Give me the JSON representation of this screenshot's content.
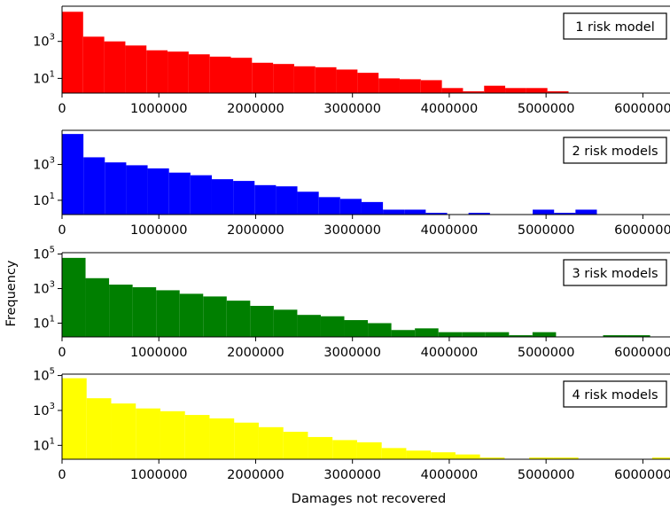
{
  "chart_data": {
    "type": "bar",
    "layout": "4 stacked panels sharing x axis range",
    "xlabel": "Damages not recovered",
    "ylabel": "Frequency",
    "yscale": "log",
    "xlim": [
      0,
      6500000
    ],
    "x_ticks": [
      0,
      1000000,
      2000000,
      3000000,
      4000000,
      5000000,
      6000000
    ],
    "x_tick_labels": [
      "0",
      "1000000",
      "2000000",
      "3000000",
      "4000000",
      "5000000",
      "6000000"
    ],
    "legend_placement": "top-right",
    "grid": false,
    "panels": [
      {
        "legend": "1 risk model",
        "color": "#ff0000",
        "ylim": [
          1.6,
          80000
        ],
        "y_ticks": [
          10,
          1000
        ],
        "y_tick_labels": [
          {
            "base": "10",
            "exp": "1"
          },
          {
            "base": "10",
            "exp": "3"
          }
        ],
        "bars": [
          {
            "x0": 0,
            "x1": 218000,
            "y": 40000
          },
          {
            "x0": 218000,
            "x1": 436000,
            "y": 1800
          },
          {
            "x0": 436000,
            "x1": 654000,
            "y": 1000
          },
          {
            "x0": 654000,
            "x1": 872000,
            "y": 600
          },
          {
            "x0": 872000,
            "x1": 1090000,
            "y": 330
          },
          {
            "x0": 1090000,
            "x1": 1308000,
            "y": 280
          },
          {
            "x0": 1308000,
            "x1": 1526000,
            "y": 200
          },
          {
            "x0": 1526000,
            "x1": 1744000,
            "y": 150
          },
          {
            "x0": 1744000,
            "x1": 1962000,
            "y": 130
          },
          {
            "x0": 1962000,
            "x1": 2180000,
            "y": 70
          },
          {
            "x0": 2180000,
            "x1": 2398000,
            "y": 60
          },
          {
            "x0": 2398000,
            "x1": 2616000,
            "y": 45
          },
          {
            "x0": 2616000,
            "x1": 2834000,
            "y": 40
          },
          {
            "x0": 2834000,
            "x1": 3052000,
            "y": 30
          },
          {
            "x0": 3052000,
            "x1": 3270000,
            "y": 20
          },
          {
            "x0": 3270000,
            "x1": 3488000,
            "y": 10
          },
          {
            "x0": 3488000,
            "x1": 3706000,
            "y": 9
          },
          {
            "x0": 3706000,
            "x1": 3924000,
            "y": 8
          },
          {
            "x0": 3924000,
            "x1": 4142000,
            "y": 3
          },
          {
            "x0": 4142000,
            "x1": 4360000,
            "y": 2
          },
          {
            "x0": 4360000,
            "x1": 4578000,
            "y": 4
          },
          {
            "x0": 4578000,
            "x1": 4796000,
            "y": 3
          },
          {
            "x0": 4796000,
            "x1": 5014000,
            "y": 3
          },
          {
            "x0": 5014000,
            "x1": 5232000,
            "y": 2
          }
        ]
      },
      {
        "legend": "2 risk models",
        "color": "#0000ff",
        "ylim": [
          1.6,
          80000
        ],
        "y_ticks": [
          10,
          1000
        ],
        "y_tick_labels": [
          {
            "base": "10",
            "exp": "1"
          },
          {
            "base": "10",
            "exp": "3"
          }
        ],
        "bars": [
          {
            "x0": 0,
            "x1": 221000,
            "y": 50000
          },
          {
            "x0": 221000,
            "x1": 442000,
            "y": 2500
          },
          {
            "x0": 442000,
            "x1": 663000,
            "y": 1300
          },
          {
            "x0": 663000,
            "x1": 884000,
            "y": 900
          },
          {
            "x0": 884000,
            "x1": 1105000,
            "y": 600
          },
          {
            "x0": 1105000,
            "x1": 1326000,
            "y": 350
          },
          {
            "x0": 1326000,
            "x1": 1547000,
            "y": 250
          },
          {
            "x0": 1547000,
            "x1": 1768000,
            "y": 150
          },
          {
            "x0": 1768000,
            "x1": 1989000,
            "y": 120
          },
          {
            "x0": 1989000,
            "x1": 2210000,
            "y": 70
          },
          {
            "x0": 2210000,
            "x1": 2431000,
            "y": 60
          },
          {
            "x0": 2431000,
            "x1": 2652000,
            "y": 30
          },
          {
            "x0": 2652000,
            "x1": 2873000,
            "y": 15
          },
          {
            "x0": 2873000,
            "x1": 3094000,
            "y": 12
          },
          {
            "x0": 3094000,
            "x1": 3315000,
            "y": 8
          },
          {
            "x0": 3315000,
            "x1": 3536000,
            "y": 3
          },
          {
            "x0": 3536000,
            "x1": 3757000,
            "y": 3
          },
          {
            "x0": 3757000,
            "x1": 3978000,
            "y": 2
          },
          {
            "x0": 4199000,
            "x1": 4420000,
            "y": 2
          },
          {
            "x0": 4862000,
            "x1": 5083000,
            "y": 3
          },
          {
            "x0": 5083000,
            "x1": 5304000,
            "y": 2
          },
          {
            "x0": 5304000,
            "x1": 5525000,
            "y": 3
          }
        ]
      },
      {
        "legend": "3 risk models",
        "color": "#007f00",
        "ylim": [
          1.6,
          120000
        ],
        "y_ticks": [
          10,
          1000,
          100000
        ],
        "y_tick_labels": [
          {
            "base": "10",
            "exp": "1"
          },
          {
            "base": "10",
            "exp": "3"
          },
          {
            "base": "10",
            "exp": "5"
          }
        ],
        "bars": [
          {
            "x0": 0,
            "x1": 243000,
            "y": 60000
          },
          {
            "x0": 243000,
            "x1": 486000,
            "y": 4000
          },
          {
            "x0": 486000,
            "x1": 729000,
            "y": 1700
          },
          {
            "x0": 729000,
            "x1": 972000,
            "y": 1200
          },
          {
            "x0": 972000,
            "x1": 1215000,
            "y": 800
          },
          {
            "x0": 1215000,
            "x1": 1458000,
            "y": 500
          },
          {
            "x0": 1458000,
            "x1": 1701000,
            "y": 350
          },
          {
            "x0": 1701000,
            "x1": 1944000,
            "y": 200
          },
          {
            "x0": 1944000,
            "x1": 2187000,
            "y": 100
          },
          {
            "x0": 2187000,
            "x1": 2430000,
            "y": 60
          },
          {
            "x0": 2430000,
            "x1": 2673000,
            "y": 30
          },
          {
            "x0": 2673000,
            "x1": 2916000,
            "y": 25
          },
          {
            "x0": 2916000,
            "x1": 3159000,
            "y": 15
          },
          {
            "x0": 3159000,
            "x1": 3402000,
            "y": 10
          },
          {
            "x0": 3402000,
            "x1": 3645000,
            "y": 4
          },
          {
            "x0": 3645000,
            "x1": 3888000,
            "y": 5
          },
          {
            "x0": 3888000,
            "x1": 4131000,
            "y": 3
          },
          {
            "x0": 4131000,
            "x1": 4374000,
            "y": 3
          },
          {
            "x0": 4374000,
            "x1": 4617000,
            "y": 3
          },
          {
            "x0": 4617000,
            "x1": 4860000,
            "y": 2
          },
          {
            "x0": 4860000,
            "x1": 5103000,
            "y": 3
          },
          {
            "x0": 5589000,
            "x1": 5832000,
            "y": 2
          },
          {
            "x0": 5832000,
            "x1": 6075000,
            "y": 2
          }
        ]
      },
      {
        "legend": "4 risk models",
        "color": "#ffff00",
        "ylim": [
          1.6,
          120000
        ],
        "y_ticks": [
          10,
          1000,
          100000
        ],
        "y_tick_labels": [
          {
            "base": "10",
            "exp": "1"
          },
          {
            "base": "10",
            "exp": "3"
          },
          {
            "base": "10",
            "exp": "5"
          }
        ],
        "bars": [
          {
            "x0": 0,
            "x1": 254000,
            "y": 70000
          },
          {
            "x0": 254000,
            "x1": 508000,
            "y": 5000
          },
          {
            "x0": 508000,
            "x1": 762000,
            "y": 2500
          },
          {
            "x0": 762000,
            "x1": 1016000,
            "y": 1300
          },
          {
            "x0": 1016000,
            "x1": 1270000,
            "y": 900
          },
          {
            "x0": 1270000,
            "x1": 1524000,
            "y": 550
          },
          {
            "x0": 1524000,
            "x1": 1778000,
            "y": 350
          },
          {
            "x0": 1778000,
            "x1": 2032000,
            "y": 200
          },
          {
            "x0": 2032000,
            "x1": 2286000,
            "y": 110
          },
          {
            "x0": 2286000,
            "x1": 2540000,
            "y": 60
          },
          {
            "x0": 2540000,
            "x1": 2794000,
            "y": 30
          },
          {
            "x0": 2794000,
            "x1": 3048000,
            "y": 20
          },
          {
            "x0": 3048000,
            "x1": 3302000,
            "y": 15
          },
          {
            "x0": 3302000,
            "x1": 3556000,
            "y": 7
          },
          {
            "x0": 3556000,
            "x1": 3810000,
            "y": 5
          },
          {
            "x0": 3810000,
            "x1": 4064000,
            "y": 4
          },
          {
            "x0": 4064000,
            "x1": 4318000,
            "y": 3
          },
          {
            "x0": 4318000,
            "x1": 4572000,
            "y": 2
          },
          {
            "x0": 4826000,
            "x1": 5080000,
            "y": 2
          },
          {
            "x0": 5080000,
            "x1": 5334000,
            "y": 2
          },
          {
            "x0": 6096000,
            "x1": 6350000,
            "y": 2
          },
          {
            "x0": 6350000,
            "x1": 6604000,
            "y": 2
          }
        ]
      }
    ]
  }
}
